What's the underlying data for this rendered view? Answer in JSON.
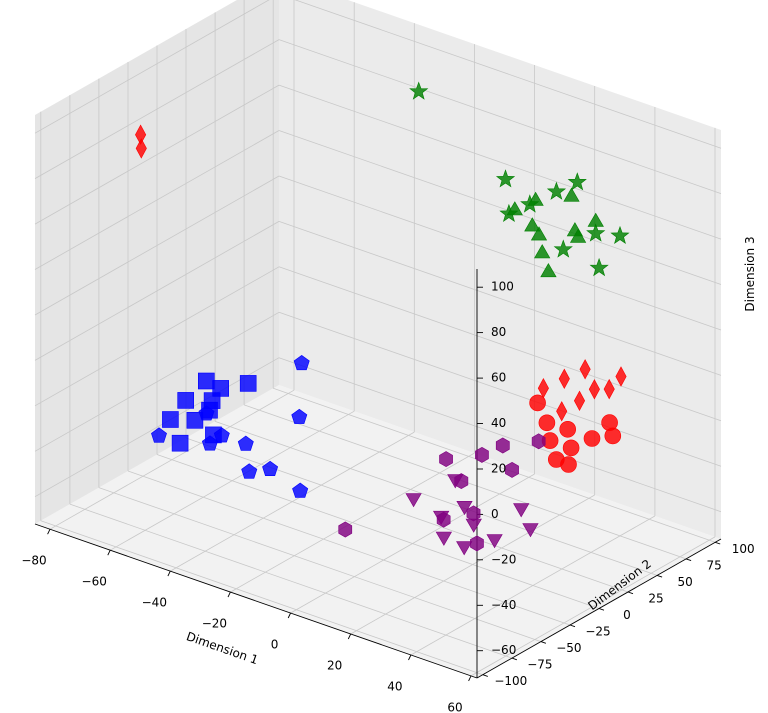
{
  "chart_data": {
    "type": "scatter",
    "projection": "3d",
    "xlabel": "Dimension 1",
    "ylabel": "Dimension 2",
    "zlabel": "Dimension 3",
    "xlim": [
      -85,
      62
    ],
    "ylim": [
      -105,
      105
    ],
    "zlim": [
      -72,
      108
    ],
    "xticks": [
      -80,
      -60,
      -40,
      -20,
      0,
      20,
      40,
      60
    ],
    "yticks": [
      -100,
      -75,
      -50,
      -25,
      0,
      25,
      50,
      75,
      100
    ],
    "zticks": [
      -60,
      -40,
      -20,
      0,
      20,
      40,
      60,
      80,
      100
    ],
    "grid": true,
    "legend": "none",
    "view": {
      "elev": 30,
      "azim": -60
    },
    "series": [
      {
        "color": "#0000ff",
        "marker": "square",
        "points": [
          [
            -60,
            -40,
            -25
          ],
          [
            -57,
            -30,
            -18
          ],
          [
            -55,
            -45,
            -30
          ],
          [
            -52,
            -38,
            -22
          ],
          [
            -58,
            -50,
            -40
          ],
          [
            -50,
            -42,
            -35
          ],
          [
            -54,
            -35,
            -28
          ],
          [
            -45,
            -25,
            -15
          ],
          [
            -62,
            -48,
            -32
          ],
          [
            -53,
            -28,
            -20
          ]
        ]
      },
      {
        "color": "#0000ff",
        "marker": "pentagon",
        "points": [
          [
            -65,
            -50,
            -40
          ],
          [
            -55,
            -35,
            -30
          ],
          [
            -50,
            -45,
            -38
          ],
          [
            -40,
            -40,
            -35
          ],
          [
            -30,
            -45,
            -40
          ],
          [
            -28,
            -25,
            -22
          ],
          [
            -35,
            -50,
            -42
          ],
          [
            -20,
            -45,
            -45
          ],
          [
            -48,
            -40,
            -35
          ],
          [
            -33,
            -10,
            -5
          ]
        ]
      },
      {
        "color": "#800080",
        "marker": "triangle-down",
        "points": [
          [
            10,
            -25,
            -40
          ],
          [
            20,
            -15,
            -30
          ],
          [
            25,
            -20,
            -38
          ],
          [
            30,
            -25,
            -42
          ],
          [
            22,
            -30,
            -50
          ],
          [
            35,
            -20,
            -48
          ],
          [
            45,
            -15,
            -40
          ],
          [
            18,
            -22,
            -45
          ],
          [
            28,
            -28,
            -52
          ],
          [
            40,
            -10,
            -35
          ]
        ]
      },
      {
        "color": "#800080",
        "marker": "hexagon",
        "points": [
          [
            15,
            -10,
            -25
          ],
          [
            25,
            -5,
            -20
          ],
          [
            30,
            0,
            -15
          ],
          [
            22,
            -15,
            -30
          ],
          [
            35,
            -5,
            -22
          ],
          [
            20,
            -25,
            -45
          ],
          [
            28,
            -20,
            -40
          ],
          [
            33,
            -30,
            -48
          ],
          [
            -5,
            -45,
            -55
          ],
          [
            40,
            5,
            -10
          ]
        ]
      },
      {
        "color": "#008000",
        "marker": "triangle",
        "points": [
          [
            5,
            75,
            55
          ],
          [
            10,
            80,
            60
          ],
          [
            15,
            70,
            50
          ],
          [
            20,
            85,
            65
          ],
          [
            25,
            75,
            55
          ],
          [
            30,
            80,
            60
          ],
          [
            18,
            65,
            45
          ],
          [
            28,
            70,
            55
          ],
          [
            22,
            60,
            40
          ],
          [
            12,
            72,
            52
          ]
        ]
      },
      {
        "color": "#008000",
        "marker": "star",
        "points": [
          [
            -25,
            70,
            95
          ],
          [
            0,
            80,
            65
          ],
          [
            10,
            75,
            60
          ],
          [
            5,
            70,
            55
          ],
          [
            20,
            90,
            70
          ],
          [
            30,
            80,
            55
          ],
          [
            35,
            70,
            45
          ],
          [
            25,
            65,
            50
          ],
          [
            15,
            85,
            65
          ],
          [
            40,
            75,
            60
          ]
        ]
      },
      {
        "color": "#ff0000",
        "marker": "circle",
        "points": [
          [
            30,
            30,
            -5
          ],
          [
            35,
            25,
            -10
          ],
          [
            40,
            30,
            -12
          ],
          [
            45,
            20,
            -15
          ],
          [
            50,
            25,
            -10
          ],
          [
            55,
            30,
            -8
          ],
          [
            42,
            15,
            -20
          ],
          [
            48,
            10,
            -18
          ],
          [
            38,
            20,
            -15
          ],
          [
            52,
            35,
            -5
          ]
        ]
      },
      {
        "color": "#ff0000",
        "marker": "diamond",
        "points": [
          [
            30,
            35,
            0
          ],
          [
            35,
            40,
            5
          ],
          [
            40,
            45,
            10
          ],
          [
            45,
            40,
            5
          ],
          [
            50,
            50,
            10
          ],
          [
            38,
            30,
            -5
          ],
          [
            42,
            35,
            0
          ],
          [
            48,
            45,
            5
          ],
          [
            -75,
            -40,
            85
          ],
          [
            -74,
            -42,
            80
          ]
        ]
      }
    ]
  }
}
